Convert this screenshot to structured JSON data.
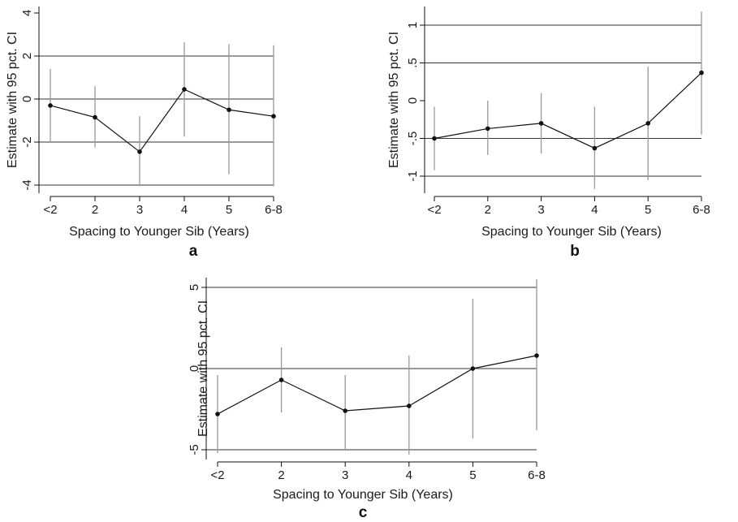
{
  "chart_data": [
    {
      "type": "line",
      "panel_label": "a",
      "xlabel": "Spacing to Younger Sib (Years)",
      "ylabel": "Estimate with 95 pct. CI",
      "categories": [
        "<2",
        "2",
        "3",
        "4",
        "5",
        "6-8"
      ],
      "yticks": [
        "4",
        "2",
        "0",
        "-2",
        "-4"
      ],
      "ytick_values": [
        4,
        2,
        0,
        -2,
        -4
      ],
      "gridlines": [
        2,
        0,
        -2,
        -4
      ],
      "ylim": [
        -4.3,
        4.3
      ],
      "series": [
        {
          "values": [
            -0.3,
            -0.85,
            -2.45,
            0.45,
            -0.5,
            -0.8
          ],
          "ci_low": [
            -2.0,
            -2.25,
            -4.05,
            -1.75,
            -3.5,
            -4.05
          ],
          "ci_high": [
            1.4,
            0.6,
            -0.8,
            2.65,
            2.55,
            2.5
          ]
        }
      ],
      "grid": true
    },
    {
      "type": "line",
      "panel_label": "b",
      "xlabel": "Spacing to Younger Sib (Years)",
      "ylabel": "Estimate with 95 pct. CI",
      "categories": [
        "<2",
        "2",
        "3",
        "4",
        "5",
        "6-8"
      ],
      "yticks": [
        "1",
        ".5",
        "0",
        "-.5",
        "-1"
      ],
      "ytick_values": [
        1,
        0.5,
        0,
        -0.5,
        -1
      ],
      "gridlines": [
        1,
        0.5,
        -0.5,
        -1
      ],
      "ylim": [
        -1.25,
        1.2
      ],
      "series": [
        {
          "values": [
            -0.5,
            -0.37,
            -0.3,
            -0.63,
            -0.3,
            0.37
          ],
          "ci_low": [
            -0.92,
            -0.72,
            -0.7,
            -1.17,
            -1.05,
            -0.45
          ],
          "ci_high": [
            -0.08,
            0.0,
            0.1,
            -0.08,
            0.45,
            1.18
          ]
        }
      ],
      "grid": true
    },
    {
      "type": "line",
      "panel_label": "c",
      "xlabel": "Spacing to Younger Sib (Years)",
      "ylabel": "Estimate with 95 pct. CI",
      "categories": [
        "<2",
        "2",
        "3",
        "4",
        "5",
        "6-8"
      ],
      "yticks": [
        "5",
        "0",
        "-5"
      ],
      "ytick_values": [
        5,
        0,
        -5
      ],
      "gridlines": [
        5,
        0,
        -5
      ],
      "ylim": [
        -5.6,
        5.5
      ],
      "series": [
        {
          "values": [
            -2.8,
            -0.7,
            -2.6,
            -2.3,
            0.0,
            0.8
          ],
          "ci_low": [
            -5.2,
            -2.7,
            -5.0,
            -5.3,
            -4.3,
            -3.8
          ],
          "ci_high": [
            -0.4,
            1.3,
            -0.4,
            0.8,
            4.3,
            5.5
          ]
        }
      ],
      "grid": true
    }
  ]
}
